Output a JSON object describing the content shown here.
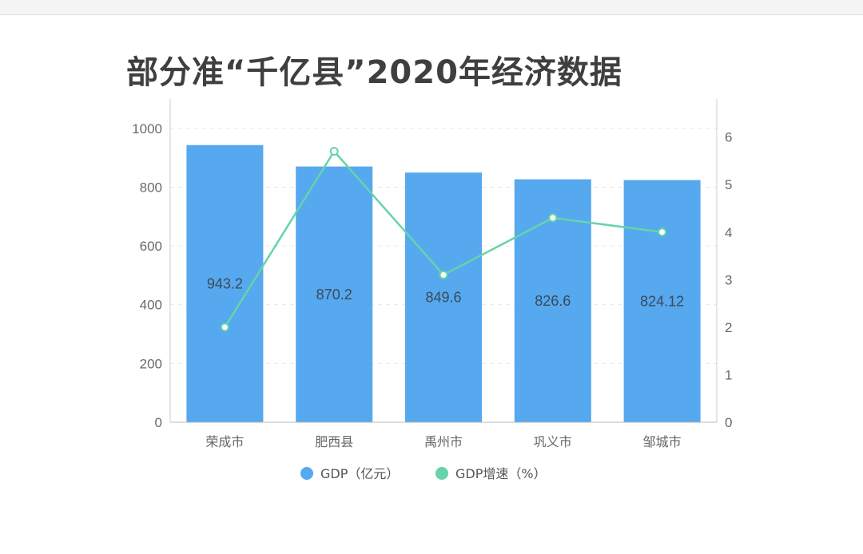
{
  "title": "部分准“千亿县”2020年经济数据",
  "colors": {
    "bar": "#56a8ef",
    "line": "#66d4a8",
    "axis": "#cccccc",
    "grid": "#e6e6e6"
  },
  "chart_data": {
    "type": "bar+line",
    "title": "部分准“千亿县”2020年经济数据",
    "categories": [
      "荣成市",
      "肥西县",
      "禹州市",
      "巩义市",
      "邹城市"
    ],
    "series": [
      {
        "name": "GDP（亿元）",
        "type": "bar",
        "axis": "left",
        "values": [
          943.2,
          870.2,
          849.6,
          826.6,
          824.12
        ],
        "labels": [
          "943.2",
          "870.2",
          "849.6",
          "826.6",
          "824.12"
        ]
      },
      {
        "name": "GDP增速（%）",
        "type": "line",
        "axis": "right",
        "values": [
          2.0,
          5.7,
          3.1,
          4.3,
          4.0
        ]
      }
    ],
    "y_left": {
      "min": 0,
      "max": 1100,
      "ticks": [
        0,
        200,
        400,
        600,
        800,
        1000
      ]
    },
    "y_right": {
      "min": 0,
      "max": 6.8,
      "ticks": [
        0,
        1,
        2,
        3,
        4,
        5,
        6
      ]
    },
    "grid": "horizontal dashed",
    "legend_position": "bottom"
  }
}
